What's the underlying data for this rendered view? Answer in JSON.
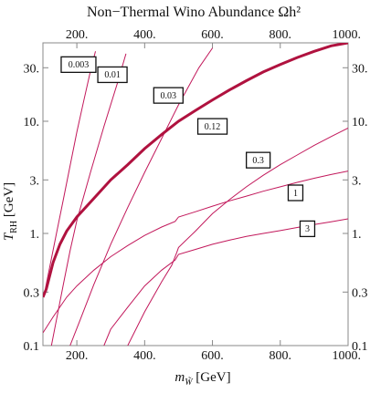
{
  "chart_data": {
    "type": "line",
    "title": "Non−Thermal Wino Abundance Ωh²",
    "xlabel": "m_W̃ [GeV]",
    "ylabel": "T_RH [GeV]",
    "xlim": [
      100,
      1000
    ],
    "ylim": [
      0.1,
      50
    ],
    "y_scale": "log",
    "grid": false,
    "x_ticks": [
      200,
      400,
      600,
      800,
      1000
    ],
    "x_tick_labels": [
      "200.",
      "400.",
      "600.",
      "800.",
      "1000."
    ],
    "y_ticks": [
      0.1,
      0.3,
      1,
      3,
      10,
      30
    ],
    "y_tick_labels": [
      "0.1",
      "0.3",
      "1.",
      "3.",
      "10.",
      "30."
    ],
    "line_color": "#c2185b",
    "highlight_color": "#b0123f",
    "series": [
      {
        "name": "0.003",
        "points": [
          [
            107,
            0.32
          ],
          [
            120,
            0.5
          ],
          [
            140,
            1.0
          ],
          [
            160,
            2.0
          ],
          [
            180,
            4.0
          ],
          [
            200,
            8.0
          ],
          [
            220,
            15
          ],
          [
            240,
            28
          ],
          [
            255,
            42
          ]
        ]
      },
      {
        "name": "0.01",
        "points": [
          [
            125,
            0.1
          ],
          [
            140,
            0.17
          ],
          [
            160,
            0.35
          ],
          [
            180,
            0.7
          ],
          [
            200,
            1.3
          ],
          [
            240,
            3.5
          ],
          [
            280,
            9
          ],
          [
            320,
            22
          ],
          [
            345,
            40
          ]
        ]
      },
      {
        "name": "0.03",
        "points": [
          [
            180,
            0.1
          ],
          [
            210,
            0.17
          ],
          [
            250,
            0.35
          ],
          [
            300,
            0.8
          ],
          [
            350,
            1.7
          ],
          [
            400,
            3.5
          ],
          [
            450,
            7
          ],
          [
            500,
            14
          ],
          [
            560,
            30
          ],
          [
            600,
            45
          ]
        ]
      },
      {
        "name": "0.12",
        "highlight": true,
        "points": [
          [
            100,
            0.27
          ],
          [
            110,
            0.32
          ],
          [
            130,
            0.55
          ],
          [
            150,
            0.8
          ],
          [
            170,
            1.05
          ],
          [
            200,
            1.4
          ],
          [
            250,
            2.05
          ],
          [
            300,
            3.0
          ],
          [
            350,
            4.1
          ],
          [
            400,
            5.7
          ],
          [
            450,
            7.6
          ],
          [
            500,
            10
          ],
          [
            550,
            12.5
          ],
          [
            600,
            15.5
          ],
          [
            650,
            19
          ],
          [
            700,
            23
          ],
          [
            750,
            27.5
          ],
          [
            800,
            32
          ],
          [
            850,
            37
          ],
          [
            900,
            42
          ],
          [
            950,
            47
          ],
          [
            1000,
            52
          ]
        ]
      },
      {
        "name": "0.3",
        "points": [
          [
            350,
            0.1
          ],
          [
            400,
            0.2
          ],
          [
            450,
            0.37
          ],
          [
            480,
            0.52
          ],
          [
            495,
            0.68
          ],
          [
            500,
            0.75
          ],
          [
            550,
            1.05
          ],
          [
            600,
            1.5
          ],
          [
            650,
            2.0
          ],
          [
            700,
            2.6
          ],
          [
            750,
            3.3
          ],
          [
            800,
            4.1
          ],
          [
            850,
            5.0
          ],
          [
            900,
            6.1
          ],
          [
            950,
            7.3
          ],
          [
            1000,
            8.7
          ]
        ]
      },
      {
        "name": "1",
        "points": [
          [
            100,
            0.13
          ],
          [
            130,
            0.18
          ],
          [
            170,
            0.27
          ],
          [
            200,
            0.34
          ],
          [
            250,
            0.47
          ],
          [
            300,
            0.62
          ],
          [
            350,
            0.78
          ],
          [
            400,
            0.96
          ],
          [
            450,
            1.14
          ],
          [
            490,
            1.28
          ],
          [
            500,
            1.4
          ],
          [
            550,
            1.56
          ],
          [
            600,
            1.75
          ],
          [
            650,
            1.95
          ],
          [
            700,
            2.15
          ],
          [
            750,
            2.38
          ],
          [
            800,
            2.6
          ],
          [
            850,
            2.85
          ],
          [
            900,
            3.1
          ],
          [
            950,
            3.35
          ],
          [
            1000,
            3.6
          ]
        ]
      },
      {
        "name": "3",
        "points": [
          [
            280,
            0.1
          ],
          [
            300,
            0.14
          ],
          [
            350,
            0.22
          ],
          [
            400,
            0.34
          ],
          [
            450,
            0.47
          ],
          [
            490,
            0.58
          ],
          [
            500,
            0.65
          ],
          [
            550,
            0.72
          ],
          [
            600,
            0.8
          ],
          [
            650,
            0.87
          ],
          [
            700,
            0.94
          ],
          [
            750,
            1.0
          ],
          [
            800,
            1.06
          ],
          [
            850,
            1.13
          ],
          [
            900,
            1.2
          ],
          [
            950,
            1.27
          ],
          [
            1000,
            1.35
          ]
        ]
      }
    ],
    "labels": [
      {
        "text": "0.003",
        "x": 205,
        "y": 32
      },
      {
        "text": "0.01",
        "x": 305,
        "y": 26
      },
      {
        "text": "0.03",
        "x": 470,
        "y": 17
      },
      {
        "text": "0.12",
        "x": 600,
        "y": 9
      },
      {
        "text": "0.3",
        "x": 735,
        "y": 4.5
      },
      {
        "text": "1",
        "x": 845,
        "y": 2.3
      },
      {
        "text": "3",
        "x": 880,
        "y": 1.1
      }
    ]
  }
}
